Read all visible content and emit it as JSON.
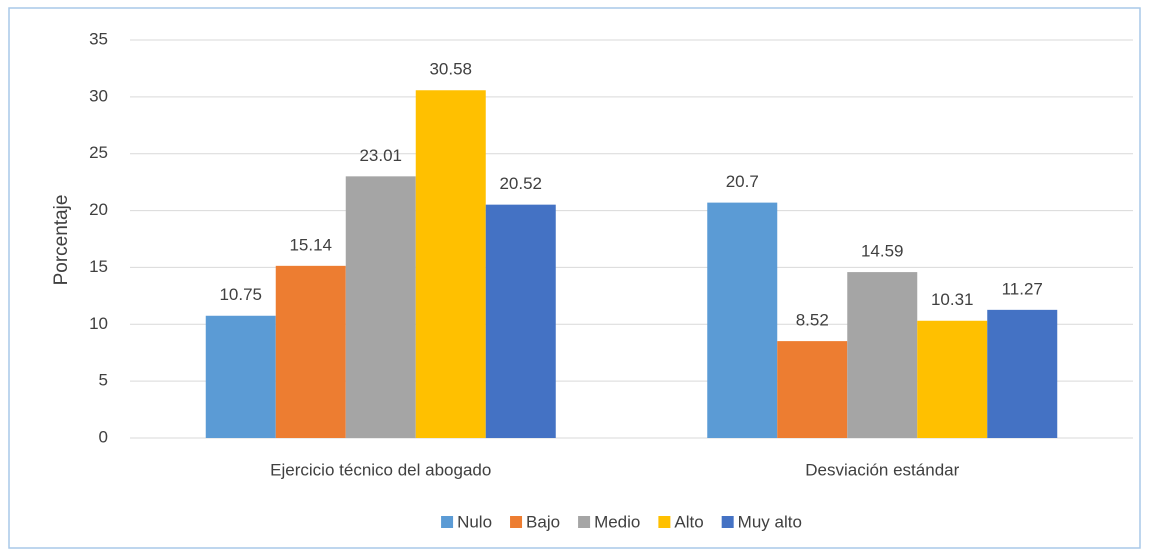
{
  "chart_data": {
    "type": "bar",
    "y_label": "Porcentaje",
    "categories": [
      "Ejercicio técnico del abogado",
      "Desviación estándar"
    ],
    "series": [
      {
        "name": "Nulo",
        "color": "#5b9bd5",
        "values": [
          10.75,
          20.7
        ]
      },
      {
        "name": "Bajo",
        "color": "#ed7d31",
        "values": [
          15.14,
          8.52
        ]
      },
      {
        "name": "Medio",
        "color": "#a5a5a5",
        "values": [
          23.01,
          14.59
        ]
      },
      {
        "name": "Alto",
        "color": "#ffc000",
        "values": [
          30.58,
          10.31
        ]
      },
      {
        "name": "Muy alto",
        "color": "#4472c4",
        "values": [
          20.52,
          11.27
        ]
      }
    ],
    "ylim": [
      0,
      35
    ],
    "yticks": [
      0,
      5,
      10,
      15,
      20,
      25,
      30,
      35
    ],
    "grid": true,
    "legend": "bottom"
  }
}
